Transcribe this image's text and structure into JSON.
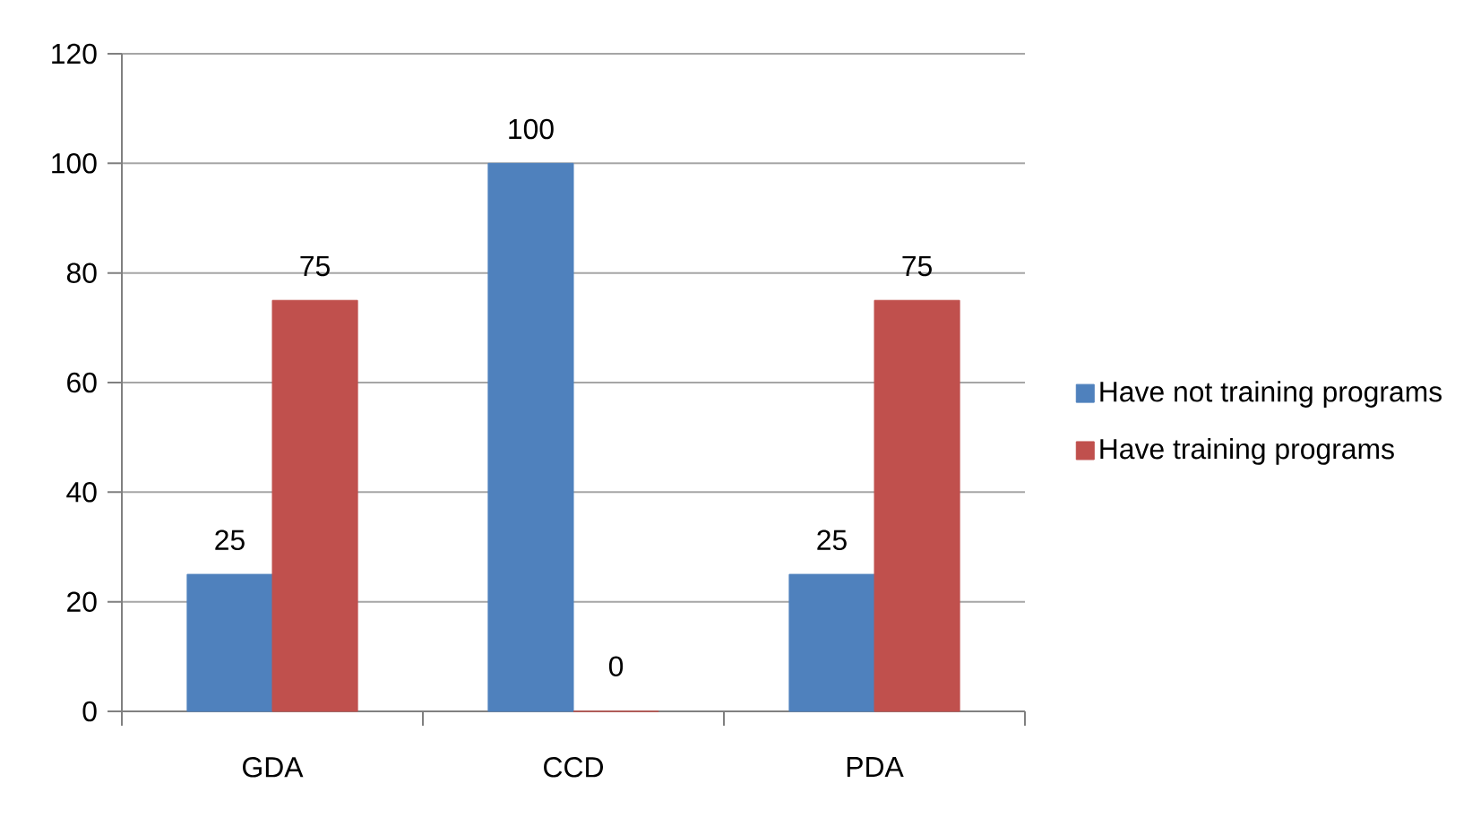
{
  "chart_data": {
    "type": "bar",
    "categories": [
      "GDA",
      "CCD",
      "PDA"
    ],
    "series": [
      {
        "name": "Have not training programs",
        "color": "#4f81bd",
        "values": [
          25,
          100,
          25
        ]
      },
      {
        "name": "Have training programs",
        "color": "#c0504d",
        "values": [
          75,
          0,
          75
        ]
      }
    ],
    "ylim": [
      0,
      120
    ],
    "yticks": [
      0,
      20,
      40,
      60,
      80,
      100,
      120
    ],
    "grid": "y",
    "legend": "right",
    "data_labels": true
  }
}
